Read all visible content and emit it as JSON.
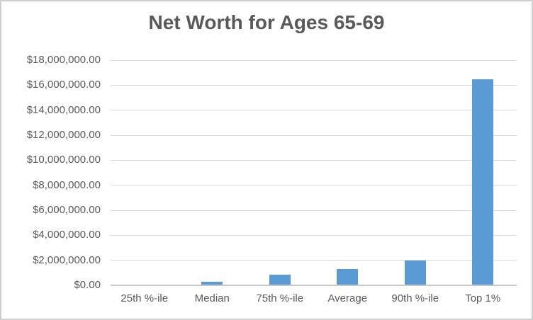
{
  "chart_data": {
    "type": "bar",
    "title": "Net Worth for Ages 65-69",
    "categories": [
      "25th %-ile",
      "Median",
      "75th %-ile",
      "Average",
      "90th %-ile",
      "Top 1%"
    ],
    "values": [
      0,
      250000,
      780000,
      1230000,
      1900000,
      16400000
    ],
    "xlabel": "",
    "ylabel": "",
    "ylim": [
      0,
      18000000
    ],
    "ytick_step": 2000000,
    "ytick_labels": [
      "$0.00",
      "$2,000,000.00",
      "$4,000,000.00",
      "$6,000,000.00",
      "$8,000,000.00",
      "$10,000,000.00",
      "$12,000,000.00",
      "$14,000,000.00",
      "$16,000,000.00",
      "$18,000,000.00"
    ],
    "grid": true,
    "legend": false,
    "colors": {
      "bar": "#5b9bd5",
      "gridline": "#d9d9d9",
      "axis_line": "#c8c8c8",
      "title_text": "#595959",
      "tick_text": "#595959",
      "background": "#ffffff",
      "border": "#d0cece"
    }
  }
}
